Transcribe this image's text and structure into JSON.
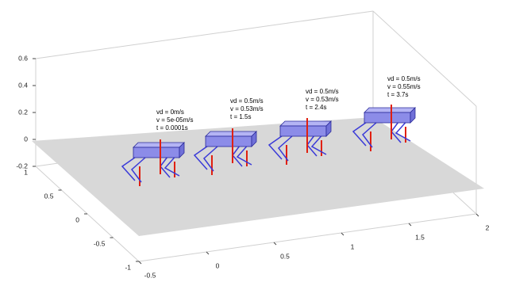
{
  "chart_data": {
    "type": "scene3d",
    "xlim": [
      -0.5,
      2
    ],
    "ylim": [
      -1,
      1
    ],
    "zlim": [
      -0.2,
      0.6
    ],
    "xticks": [
      -0.5,
      0,
      0.5,
      1,
      1.5,
      2
    ],
    "yticks": [
      -1,
      -0.5,
      0,
      0.5,
      1
    ],
    "zticks": [
      -0.2,
      0,
      0.2,
      0.4,
      0.6
    ],
    "annotations": [
      [
        "vd = 0m/s",
        "v = 5e-05m/s",
        "t = 0.0001s"
      ],
      [
        "vd = 0.5m/s",
        "v = 0.53m/s",
        "t = 1.5s"
      ],
      [
        "vd = 0.5m/s",
        "v = 0.53m/s",
        "t = 2.4s"
      ],
      [
        "vd = 0.5m/s",
        "v = 0.55m/s",
        "t = 3.7s"
      ]
    ]
  }
}
